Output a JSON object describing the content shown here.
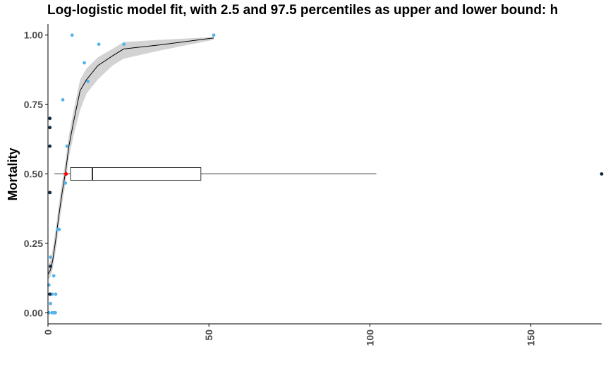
{
  "chart_data": {
    "type": "scatter",
    "title": "Log-logistic model fit, with 2.5 and 97.5 percentiles as upper and lower bound: h",
    "ylabel": "Mortality",
    "xlabel": "",
    "xlim": [
      0,
      172
    ],
    "ylim": [
      -0.04,
      1.04
    ],
    "x_ticks": [
      0,
      50,
      100,
      150
    ],
    "y_ticks": [
      0.0,
      0.25,
      0.5,
      0.75,
      1.0
    ],
    "x_tick_labels": [
      "0",
      "50",
      "100",
      "150"
    ],
    "y_tick_labels": [
      "0.00",
      "0.25",
      "0.50",
      "0.75",
      "1.00"
    ],
    "grid": false,
    "colors": {
      "points_light": "#56b4e9",
      "points_dark": "#132b43",
      "fit_line": "#000000",
      "ribbon": "#d3d3d3",
      "ec50_point": "#ff0000",
      "axis": "#000000",
      "tick_label": "#4d4d4d"
    },
    "fit_curve": {
      "x": [
        0.1,
        0.8,
        1.5,
        2.5,
        3.5,
        4.5,
        5.5,
        6.5,
        8.0,
        10.0,
        12.0,
        15.5,
        20.0,
        23.5,
        35.0,
        51.5
      ],
      "y": [
        0.14,
        0.155,
        0.19,
        0.27,
        0.36,
        0.44,
        0.51,
        0.6,
        0.69,
        0.8,
        0.84,
        0.89,
        0.925,
        0.95,
        0.965,
        0.99
      ],
      "lower": [
        0.12,
        0.13,
        0.16,
        0.23,
        0.32,
        0.4,
        0.47,
        0.56,
        0.64,
        0.73,
        0.79,
        0.84,
        0.89,
        0.915,
        0.945,
        0.983
      ],
      "upper": [
        0.17,
        0.19,
        0.23,
        0.31,
        0.4,
        0.48,
        0.55,
        0.64,
        0.73,
        0.84,
        0.88,
        0.92,
        0.95,
        0.975,
        0.983,
        0.993
      ]
    },
    "points_light": [
      {
        "x": 7.5,
        "y": 1.0
      },
      {
        "x": 51.5,
        "y": 1.0
      },
      {
        "x": 15.8,
        "y": 0.967
      },
      {
        "x": 23.6,
        "y": 0.967
      },
      {
        "x": 11.3,
        "y": 0.9
      },
      {
        "x": 12.4,
        "y": 0.833
      },
      {
        "x": 4.6,
        "y": 0.767
      },
      {
        "x": 5.9,
        "y": 0.6
      },
      {
        "x": 5.4,
        "y": 0.467
      },
      {
        "x": 3.0,
        "y": 0.3
      },
      {
        "x": 3.5,
        "y": 0.3
      },
      {
        "x": 0.8,
        "y": 0.2
      },
      {
        "x": 1.8,
        "y": 0.133
      },
      {
        "x": 0.3,
        "y": 0.1
      },
      {
        "x": 1.3,
        "y": 0.067
      },
      {
        "x": 2.4,
        "y": 0.067
      },
      {
        "x": 0.8,
        "y": 0.033
      },
      {
        "x": 0.3,
        "y": 0.0
      },
      {
        "x": 1.3,
        "y": 0.0
      },
      {
        "x": 1.9,
        "y": 0.0
      },
      {
        "x": 2.3,
        "y": 0.0
      }
    ],
    "points_dark": [
      {
        "x": 0.6,
        "y": 0.7
      },
      {
        "x": 0.6,
        "y": 0.667
      },
      {
        "x": 0.6,
        "y": 0.6
      },
      {
        "x": 0.6,
        "y": 0.433
      },
      {
        "x": 0.8,
        "y": 0.167
      },
      {
        "x": 0.6,
        "y": 0.067
      },
      {
        "x": 172,
        "y": 0.5
      }
    ],
    "ec50_point": {
      "x": 5.6,
      "y": 0.5
    },
    "boxplot": {
      "y": 0.5,
      "whisker_low": 2.0,
      "q1": 7.0,
      "median": 13.8,
      "q3": 47.5,
      "whisker_high": 102.0,
      "outlier": 172
    }
  }
}
